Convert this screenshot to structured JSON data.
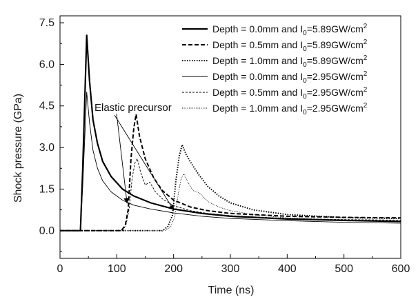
{
  "chart_data": {
    "type": "line",
    "xlabel": "Time (ns)",
    "ylabel": "Shock pressure (GPa)",
    "xlim": [
      0,
      600
    ],
    "ylim": [
      -1,
      7.75
    ],
    "xticks": [
      0,
      100,
      200,
      300,
      400,
      500,
      600
    ],
    "yticks": [
      0.0,
      1.5,
      3.0,
      4.5,
      6.0,
      7.5
    ],
    "ytick_labels": [
      "0.0",
      "1.5",
      "3.0",
      "4.5",
      "6.0",
      "7.5"
    ],
    "grid": false,
    "legend_position": "top-right",
    "annotation": {
      "text": "Elastic precursor",
      "points_to": [
        [
          118,
          1.0
        ],
        [
          200,
          0.75
        ]
      ]
    },
    "series": [
      {
        "name": "Depth = 0.0mm and I0=5.89GW/cm2",
        "legend": {
          "prefix": "Depth = 0.0mm and I",
          "sub": "0",
          "mid": "=5.89GW/cm",
          "sup": "2"
        },
        "style": "solid-thick",
        "x": [
          0,
          36,
          40,
          47,
          52,
          58,
          66,
          75,
          90,
          110,
          130,
          160,
          200,
          250,
          300,
          400,
          500,
          600
        ],
        "y": [
          0,
          0,
          2.2,
          7.05,
          5.4,
          4.0,
          3.15,
          2.5,
          1.95,
          1.5,
          1.25,
          1.0,
          0.78,
          0.62,
          0.52,
          0.42,
          0.37,
          0.33
        ]
      },
      {
        "name": "Depth = 0.5mm and I0=5.89GW/cm2",
        "legend": {
          "prefix": "Depth = 0.5mm and I",
          "sub": "0",
          "mid": "=5.89GW/cm",
          "sup": "2"
        },
        "style": "dashed",
        "x": [
          0,
          108,
          115,
          120,
          125,
          130,
          134,
          140,
          150,
          165,
          180,
          200,
          230,
          260,
          300,
          400,
          500,
          600
        ],
        "y": [
          0,
          0,
          0.2,
          0.75,
          2.6,
          3.7,
          4.2,
          3.4,
          2.6,
          1.9,
          1.45,
          1.1,
          0.85,
          0.72,
          0.62,
          0.52,
          0.48,
          0.46
        ]
      },
      {
        "name": "Depth = 1.0mm and I0=5.89GW/cm2",
        "legend": {
          "prefix": "Depth = 1.0mm and I",
          "sub": "0",
          "mid": "=5.89GW/cm",
          "sup": "2"
        },
        "style": "dotted",
        "x": [
          0,
          180,
          190,
          198,
          204,
          210,
          215,
          222,
          232,
          245,
          260,
          280,
          300,
          340,
          400,
          500,
          600
        ],
        "y": [
          0,
          0,
          0.15,
          0.55,
          1.8,
          2.7,
          3.1,
          2.75,
          2.4,
          2.0,
          1.6,
          1.25,
          1.0,
          0.75,
          0.58,
          0.47,
          0.44
        ]
      },
      {
        "name": "Depth = 0.0mm and I0=2.95GW/cm2",
        "legend": {
          "prefix": "Depth = 0.0mm and I",
          "sub": "0",
          "mid": "=2.95GW/cm",
          "sup": "2"
        },
        "style": "solid-thin",
        "x": [
          0,
          36,
          40,
          47,
          52,
          58,
          66,
          75,
          90,
          110,
          130,
          160,
          200,
          250,
          300,
          400,
          500,
          600
        ],
        "y": [
          0,
          0,
          1.6,
          5.0,
          3.9,
          2.9,
          2.25,
          1.8,
          1.4,
          1.1,
          0.92,
          0.78,
          0.64,
          0.52,
          0.44,
          0.36,
          0.3,
          0.27
        ]
      },
      {
        "name": "Depth = 0.5mm and I0=2.95GW/cm2",
        "legend": {
          "prefix": "Depth = 0.5mm and I",
          "sub": "0",
          "mid": "=2.95GW/cm",
          "sup": "2"
        },
        "style": "fine-dashed",
        "x": [
          0,
          110,
          116,
          122,
          127,
          132,
          136,
          142,
          150,
          158,
          168,
          180,
          200,
          230,
          260,
          300,
          400,
          500,
          600
        ],
        "y": [
          0,
          0,
          0.2,
          0.8,
          1.9,
          2.45,
          2.6,
          2.1,
          1.65,
          1.75,
          1.4,
          1.15,
          0.9,
          0.72,
          0.62,
          0.54,
          0.44,
          0.4,
          0.38
        ]
      },
      {
        "name": "Depth = 1.0mm and I0=2.95GW/cm2",
        "legend": {
          "prefix": "Depth = 1.0mm and I",
          "sub": "0",
          "mid": "=2.95GW/cm",
          "sup": "2"
        },
        "style": "fine-dotted",
        "x": [
          0,
          185,
          195,
          202,
          208,
          213,
          218,
          225,
          234,
          246,
          260,
          280,
          300,
          340,
          400,
          500,
          600
        ],
        "y": [
          0,
          0,
          0.15,
          0.5,
          1.3,
          1.85,
          2.05,
          1.75,
          1.45,
          1.35,
          1.05,
          0.85,
          0.72,
          0.58,
          0.46,
          0.38,
          0.34
        ]
      }
    ]
  }
}
